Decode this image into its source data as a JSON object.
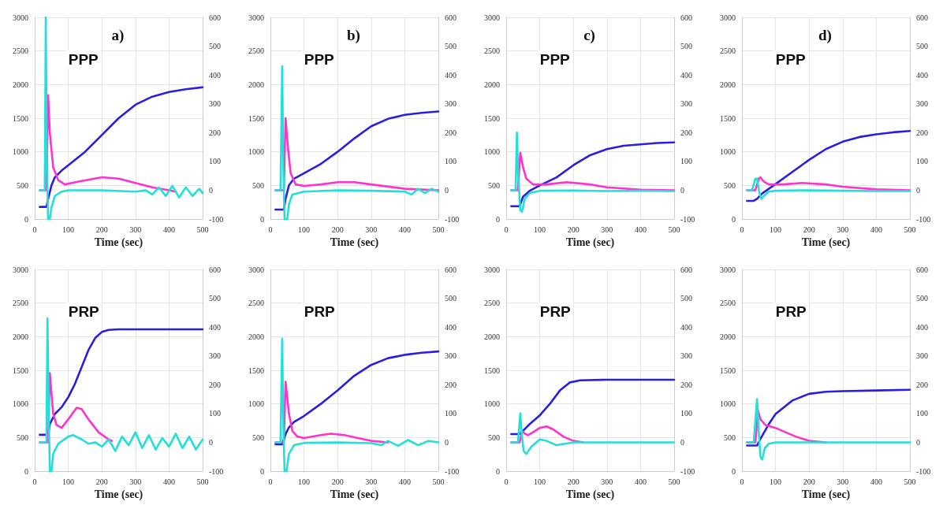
{
  "chart_data": [
    {
      "type": "line",
      "title": "a)",
      "annotations": [
        "PPP"
      ],
      "xlabel": "Time (sec)",
      "xlim": [
        0,
        500
      ],
      "xticks": [
        0,
        100,
        200,
        300,
        400,
        500
      ],
      "ylim": [
        0,
        3000
      ],
      "yticks": [
        0,
        500,
        1000,
        1500,
        2000,
        2500,
        3000
      ],
      "y2lim": [
        -100,
        600
      ],
      "y2ticks": [
        -100,
        0,
        100,
        200,
        300,
        400,
        500,
        600
      ],
      "grid": true,
      "marker": "none",
      "series": [
        {
          "color": "#2a1ee0",
          "x": [
            15,
            35,
            40,
            50,
            60,
            80,
            100,
            150,
            200,
            250,
            300,
            350,
            400,
            450,
            500
          ],
          "values": [
            180,
            180,
            300,
            500,
            620,
            720,
            800,
            1000,
            1250,
            1500,
            1700,
            1820,
            1890,
            1930,
            1960
          ]
        },
        {
          "color": "#ff33cc",
          "axis": "y2",
          "x": [
            15,
            35,
            40,
            45,
            55,
            70,
            90,
            130,
            200,
            250,
            300,
            350,
            400,
            420
          ],
          "values": [
            0,
            0,
            330,
            200,
            80,
            35,
            20,
            30,
            45,
            40,
            25,
            10,
            0,
            -5
          ]
        },
        {
          "color": "#22e0d8",
          "axis": "y2",
          "x": [
            15,
            30,
            33,
            36,
            40,
            45,
            50,
            60,
            80,
            100,
            200,
            300,
            330,
            350,
            370,
            390,
            410,
            430,
            450,
            470,
            490,
            500
          ],
          "values": [
            0,
            0,
            600,
            100,
            -100,
            -100,
            -60,
            -20,
            -5,
            0,
            0,
            -5,
            0,
            -15,
            10,
            -20,
            15,
            -25,
            10,
            -20,
            5,
            -10
          ]
        }
      ]
    },
    {
      "type": "line",
      "title": "b)",
      "annotations": [
        "PPP"
      ],
      "xlabel": "Time (sec)",
      "xlim": [
        0,
        500
      ],
      "xticks": [
        0,
        100,
        200,
        300,
        400,
        500
      ],
      "ylim": [
        0,
        3000
      ],
      "yticks": [
        0,
        500,
        1000,
        1500,
        2000,
        2500,
        3000
      ],
      "y2lim": [
        -100,
        600
      ],
      "y2ticks": [
        -100,
        0,
        100,
        200,
        300,
        400,
        500,
        600
      ],
      "grid": true,
      "marker": "none",
      "series": [
        {
          "color": "#2a1ee0",
          "x": [
            15,
            40,
            45,
            55,
            70,
            100,
            150,
            200,
            250,
            300,
            350,
            400,
            450,
            500
          ],
          "values": [
            140,
            140,
            300,
            500,
            600,
            680,
            820,
            1000,
            1200,
            1380,
            1490,
            1550,
            1580,
            1600
          ]
        },
        {
          "color": "#ff33cc",
          "axis": "y2",
          "x": [
            15,
            40,
            45,
            52,
            60,
            75,
            100,
            150,
            200,
            250,
            300,
            400,
            500
          ],
          "values": [
            0,
            0,
            250,
            150,
            60,
            20,
            15,
            20,
            28,
            28,
            20,
            5,
            0
          ]
        },
        {
          "color": "#22e0d8",
          "axis": "y2",
          "x": [
            15,
            30,
            35,
            38,
            42,
            50,
            55,
            65,
            100,
            200,
            300,
            400,
            420,
            440,
            460,
            480,
            500
          ],
          "values": [
            0,
            0,
            430,
            100,
            -100,
            -100,
            -50,
            -15,
            -5,
            0,
            -2,
            -5,
            -15,
            5,
            -10,
            5,
            -5
          ]
        }
      ]
    },
    {
      "type": "line",
      "title": "c)",
      "annotations": [
        "PPP"
      ],
      "xlabel": "Time (sec)",
      "xlim": [
        0,
        500
      ],
      "xticks": [
        0,
        100,
        200,
        300,
        400,
        500
      ],
      "ylim": [
        0,
        3000
      ],
      "yticks": [
        0,
        500,
        1000,
        1500,
        2000,
        2500,
        3000
      ],
      "y2lim": [
        -100,
        600
      ],
      "y2ticks": [
        -100,
        0,
        100,
        200,
        300,
        400,
        500,
        600
      ],
      "grid": true,
      "marker": "none",
      "series": [
        {
          "color": "#2a1ee0",
          "x": [
            15,
            40,
            50,
            70,
            100,
            150,
            200,
            250,
            300,
            350,
            400,
            450,
            500
          ],
          "values": [
            190,
            190,
            330,
            420,
            500,
            620,
            800,
            950,
            1040,
            1090,
            1110,
            1130,
            1140
          ]
        },
        {
          "color": "#ff33cc",
          "axis": "y2",
          "x": [
            15,
            35,
            42,
            50,
            60,
            80,
            120,
            180,
            250,
            300,
            400,
            500
          ],
          "values": [
            0,
            0,
            130,
            80,
            40,
            20,
            20,
            28,
            20,
            10,
            2,
            0
          ]
        },
        {
          "color": "#22e0d8",
          "axis": "y2",
          "x": [
            15,
            28,
            32,
            36,
            42,
            47,
            55,
            70,
            100,
            200,
            300,
            400,
            500
          ],
          "values": [
            0,
            0,
            200,
            50,
            -70,
            -75,
            -30,
            -10,
            -2,
            -1,
            -3,
            -2,
            -3
          ]
        }
      ]
    },
    {
      "type": "line",
      "title": "d)",
      "annotations": [
        "PPP"
      ],
      "xlabel": "Time (sec)",
      "xlim": [
        0,
        500
      ],
      "xticks": [
        0,
        100,
        200,
        300,
        400,
        500
      ],
      "ylim": [
        0,
        3000
      ],
      "yticks": [
        0,
        500,
        1000,
        1500,
        2000,
        2500,
        3000
      ],
      "y2lim": [
        -100,
        600
      ],
      "y2ticks": [
        -100,
        0,
        100,
        200,
        300,
        400,
        500,
        600
      ],
      "grid": true,
      "marker": "none",
      "series": [
        {
          "color": "#2a1ee0",
          "x": [
            15,
            35,
            45,
            60,
            100,
            150,
            200,
            250,
            300,
            350,
            400,
            450,
            500
          ],
          "values": [
            270,
            270,
            300,
            380,
            520,
            700,
            880,
            1040,
            1150,
            1220,
            1260,
            1290,
            1310
          ]
        },
        {
          "color": "#ff33cc",
          "axis": "y2",
          "x": [
            15,
            40,
            50,
            55,
            65,
            80,
            120,
            180,
            250,
            300,
            400,
            500
          ],
          "values": [
            0,
            0,
            40,
            45,
            30,
            20,
            20,
            25,
            20,
            12,
            3,
            0
          ]
        },
        {
          "color": "#22e0d8",
          "axis": "y2",
          "x": [
            15,
            30,
            40,
            45,
            52,
            58,
            65,
            80,
            100,
            200,
            300,
            400,
            500
          ],
          "values": [
            0,
            0,
            40,
            40,
            -10,
            -30,
            -20,
            -5,
            -2,
            0,
            -2,
            -3,
            -3
          ]
        }
      ]
    },
    {
      "type": "line",
      "annotations": [
        "PRP"
      ],
      "xlabel": "Time (sec)",
      "xlim": [
        0,
        500
      ],
      "xticks": [
        0,
        100,
        200,
        300,
        400,
        500
      ],
      "ylim": [
        0,
        3000
      ],
      "yticks": [
        0,
        500,
        1000,
        1500,
        2000,
        2500,
        3000
      ],
      "y2lim": [
        -100,
        600
      ],
      "y2ticks": [
        -100,
        0,
        100,
        200,
        300,
        400,
        500,
        600
      ],
      "grid": true,
      "marker": "none",
      "series": [
        {
          "color": "#2a1ee0",
          "x": [
            15,
            40,
            45,
            60,
            80,
            100,
            120,
            140,
            160,
            180,
            200,
            220,
            250,
            300,
            500
          ],
          "values": [
            540,
            540,
            700,
            850,
            950,
            1100,
            1300,
            1550,
            1800,
            1980,
            2070,
            2100,
            2110,
            2110,
            2110
          ]
        },
        {
          "color": "#ff33cc",
          "axis": "y2",
          "x": [
            15,
            40,
            45,
            55,
            65,
            80,
            100,
            125,
            140,
            160,
            190,
            220,
            230
          ],
          "values": [
            0,
            0,
            240,
            100,
            60,
            50,
            80,
            120,
            115,
            80,
            35,
            10,
            5
          ]
        },
        {
          "color": "#22e0d8",
          "axis": "y2",
          "x": [
            15,
            35,
            38,
            42,
            45,
            50,
            55,
            70,
            100,
            115,
            140,
            160,
            180,
            200,
            220,
            240,
            260,
            280,
            300,
            320,
            340,
            360,
            380,
            400,
            420,
            440,
            460,
            480,
            500
          ],
          "values": [
            0,
            0,
            430,
            100,
            -100,
            -100,
            -40,
            -5,
            20,
            25,
            10,
            -5,
            0,
            -15,
            10,
            -30,
            20,
            -10,
            35,
            -20,
            25,
            -25,
            15,
            -15,
            30,
            -20,
            20,
            -25,
            10
          ]
        }
      ]
    },
    {
      "type": "line",
      "annotations": [
        "PRP"
      ],
      "xlabel": "Time (sec)",
      "xlim": [
        0,
        500
      ],
      "xticks": [
        0,
        100,
        200,
        300,
        400,
        500
      ],
      "ylim": [
        0,
        3000
      ],
      "yticks": [
        0,
        500,
        1000,
        1500,
        2000,
        2500,
        3000
      ],
      "y2lim": [
        -100,
        600
      ],
      "y2ticks": [
        -100,
        0,
        100,
        200,
        300,
        400,
        500,
        600
      ],
      "grid": true,
      "marker": "none",
      "series": [
        {
          "color": "#2a1ee0",
          "x": [
            15,
            35,
            45,
            55,
            70,
            100,
            150,
            200,
            250,
            300,
            350,
            400,
            450,
            500
          ],
          "values": [
            400,
            400,
            550,
            650,
            730,
            820,
            1000,
            1200,
            1420,
            1580,
            1680,
            1730,
            1760,
            1780
          ]
        },
        {
          "color": "#ff33cc",
          "axis": "y2",
          "x": [
            15,
            40,
            45,
            55,
            65,
            80,
            100,
            150,
            180,
            220,
            260,
            300,
            350
          ],
          "values": [
            0,
            0,
            210,
            100,
            40,
            20,
            15,
            25,
            30,
            25,
            15,
            5,
            0
          ]
        },
        {
          "color": "#22e0d8",
          "axis": "y2",
          "x": [
            15,
            30,
            35,
            38,
            42,
            48,
            55,
            70,
            100,
            200,
            300,
            330,
            350,
            380,
            410,
            440,
            470,
            500
          ],
          "values": [
            0,
            0,
            360,
            80,
            -100,
            -100,
            -40,
            -10,
            -2,
            0,
            -3,
            -10,
            5,
            -12,
            8,
            -10,
            5,
            0
          ]
        }
      ]
    },
    {
      "type": "line",
      "annotations": [
        "PRP"
      ],
      "xlabel": "Time (sec)",
      "xlim": [
        0,
        500
      ],
      "xticks": [
        0,
        100,
        200,
        300,
        400,
        500
      ],
      "ylim": [
        0,
        3000
      ],
      "yticks": [
        0,
        500,
        1000,
        1500,
        2000,
        2500,
        3000
      ],
      "y2lim": [
        -100,
        600
      ],
      "y2ticks": [
        -100,
        0,
        100,
        200,
        300,
        400,
        500,
        600
      ],
      "grid": true,
      "marker": "none",
      "series": [
        {
          "color": "#2a1ee0",
          "x": [
            15,
            40,
            50,
            70,
            100,
            130,
            160,
            190,
            220,
            300,
            500
          ],
          "values": [
            550,
            550,
            600,
            700,
            830,
            1000,
            1200,
            1320,
            1350,
            1360,
            1360
          ]
        },
        {
          "color": "#ff33cc",
          "axis": "y2",
          "x": [
            15,
            40,
            48,
            55,
            65,
            80,
            100,
            120,
            140,
            170,
            200,
            230
          ],
          "values": [
            0,
            0,
            40,
            30,
            25,
            35,
            50,
            55,
            45,
            20,
            5,
            0
          ]
        },
        {
          "color": "#22e0d8",
          "axis": "y2",
          "x": [
            15,
            35,
            42,
            47,
            52,
            60,
            75,
            100,
            120,
            150,
            200,
            300,
            400,
            500
          ],
          "values": [
            0,
            0,
            100,
            20,
            -30,
            -40,
            -15,
            10,
            5,
            -10,
            0,
            0,
            0,
            0
          ]
        }
      ]
    },
    {
      "type": "line",
      "annotations": [
        "PRP"
      ],
      "xlabel": "Time (sec)",
      "xlim": [
        0,
        500
      ],
      "xticks": [
        0,
        100,
        200,
        300,
        400,
        500
      ],
      "ylim": [
        0,
        3000
      ],
      "yticks": [
        0,
        500,
        1000,
        1500,
        2000,
        2500,
        3000
      ],
      "y2lim": [
        -100,
        600
      ],
      "y2ticks": [
        -100,
        0,
        100,
        200,
        300,
        400,
        500,
        600
      ],
      "grid": true,
      "marker": "none",
      "series": [
        {
          "color": "#2a1ee0",
          "x": [
            15,
            45,
            55,
            80,
            100,
            150,
            200,
            250,
            300,
            400,
            500
          ],
          "values": [
            380,
            380,
            480,
            700,
            850,
            1050,
            1150,
            1180,
            1190,
            1200,
            1210
          ]
        },
        {
          "color": "#ff33cc",
          "axis": "y2",
          "x": [
            15,
            40,
            48,
            55,
            70,
            100,
            130,
            160,
            200,
            250
          ],
          "values": [
            0,
            0,
            110,
            80,
            60,
            50,
            35,
            20,
            5,
            0
          ]
        },
        {
          "color": "#22e0d8",
          "axis": "y2",
          "x": [
            15,
            35,
            45,
            50,
            55,
            60,
            68,
            80,
            100,
            200,
            300,
            400,
            500
          ],
          "values": [
            0,
            0,
            150,
            40,
            -50,
            -60,
            -20,
            -5,
            0,
            0,
            0,
            0,
            0
          ]
        }
      ]
    }
  ]
}
